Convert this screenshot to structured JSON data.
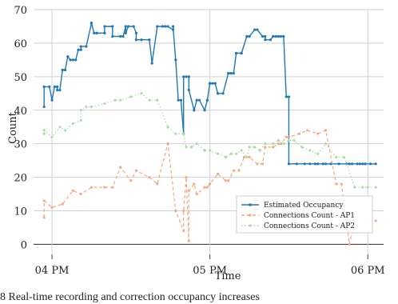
{
  "chart_data": {
    "type": "line",
    "title": "",
    "xlabel": "Time",
    "ylabel": "Count",
    "x_ticks": [
      "04 PM",
      "05 PM",
      "06 PM"
    ],
    "x_tick_values_min": [
      0,
      60,
      120
    ],
    "y_ticks": [
      0,
      10,
      20,
      30,
      40,
      50,
      60,
      70
    ],
    "xlim_min": [
      -7,
      126
    ],
    "ylim": [
      -3,
      70
    ],
    "grid": true,
    "legend_position": "bottom-right",
    "series": [
      {
        "name": "Estimated Occupancy",
        "color": "#1f77b4",
        "style": "solid",
        "marker": "circle",
        "x": [
          -3,
          -3,
          -1,
          0,
          1,
          2,
          2,
          3,
          4,
          4,
          5,
          6,
          7,
          8,
          9,
          10,
          10,
          11,
          11,
          13,
          15,
          15,
          16,
          17,
          17,
          20,
          20,
          23,
          23,
          26,
          27,
          28,
          28,
          29,
          31,
          32,
          32,
          34,
          37,
          38,
          40,
          42,
          43,
          44,
          46,
          46,
          47,
          48,
          49,
          50,
          50,
          51,
          52,
          52,
          54,
          55,
          56,
          58,
          59,
          59,
          60,
          60,
          61,
          62,
          63,
          63,
          65,
          67,
          67,
          68,
          69,
          70,
          72,
          72,
          74,
          75,
          75,
          77,
          78,
          80,
          81,
          81,
          83,
          84,
          85,
          86,
          87,
          88,
          89,
          90,
          90,
          93,
          96,
          98,
          100,
          101,
          103,
          104,
          106,
          109,
          112,
          113,
          114,
          116,
          117,
          118,
          119,
          119,
          121,
          123
        ],
        "y": [
          41,
          47,
          47,
          43,
          47,
          47,
          46,
          46,
          52,
          52,
          52,
          56,
          55,
          55,
          55,
          58,
          58,
          58,
          59,
          59,
          66,
          66,
          63,
          63,
          63,
          63,
          65,
          65,
          62,
          62,
          62,
          65,
          63,
          65,
          65,
          63,
          61,
          61,
          61,
          54,
          65,
          65,
          65,
          65,
          64,
          65,
          55,
          43,
          43,
          33,
          50,
          50,
          50,
          46,
          40,
          43,
          43,
          40,
          43,
          43,
          48,
          48,
          48,
          48,
          45,
          45,
          45,
          51,
          51,
          51,
          51,
          57,
          57,
          57,
          62,
          62,
          62,
          64,
          64,
          62,
          62,
          61,
          61,
          62,
          62,
          62,
          62,
          62,
          44,
          44,
          24,
          24,
          24,
          24,
          24,
          24,
          24,
          24,
          24,
          24,
          24,
          24,
          24,
          24,
          24,
          24,
          24,
          24,
          24,
          24
        ]
      },
      {
        "name": "Connections Count - AP1",
        "color": "#f4a582",
        "style": "dashed",
        "marker": "square",
        "x": [
          -3,
          -3,
          0,
          4,
          8,
          11,
          15,
          20,
          23,
          26,
          30,
          32,
          37,
          40,
          44,
          47,
          50,
          50,
          51,
          52,
          52,
          54,
          55,
          58,
          59,
          60,
          63,
          66,
          67,
          69,
          71,
          73,
          75,
          78,
          80,
          81,
          84,
          86,
          87,
          89,
          90,
          94,
          97,
          101,
          104,
          108,
          110,
          113,
          115,
          117,
          119,
          120,
          121,
          123
        ],
        "y": [
          8,
          13,
          11,
          12,
          16,
          15,
          17,
          17,
          17,
          23,
          19,
          22,
          20,
          18,
          30,
          10,
          4,
          10,
          20,
          1,
          16,
          18,
          15,
          17,
          17,
          18,
          21,
          19,
          19,
          22,
          22,
          26,
          26,
          24,
          24,
          29,
          29,
          30,
          30,
          32,
          32,
          33,
          34,
          33,
          34,
          18,
          18,
          0,
          7,
          7,
          7,
          7,
          7,
          7
        ]
      },
      {
        "name": "Connections Count - AP2",
        "color": "#a6dba0",
        "style": "dotted",
        "marker": "diamond",
        "x": [
          -3,
          -3,
          0,
          3,
          5,
          8,
          11,
          11,
          13,
          15,
          20,
          24,
          26,
          30,
          34,
          37,
          40,
          44,
          47,
          50,
          51,
          53,
          55,
          58,
          60,
          63,
          66,
          68,
          70,
          72,
          74,
          75,
          77,
          79,
          81,
          84,
          86,
          88,
          90,
          92,
          95,
          98,
          101,
          104,
          108,
          111,
          115,
          118,
          120,
          123
        ],
        "y": [
          33,
          34,
          32,
          35,
          34,
          36,
          37,
          40,
          41,
          41,
          42,
          43,
          43,
          44,
          45,
          43,
          43,
          35,
          33,
          33,
          29,
          29,
          30,
          28,
          28,
          27,
          26,
          27,
          27,
          28,
          26,
          29,
          29,
          28,
          30,
          30,
          31,
          30,
          31,
          31,
          29,
          28,
          27,
          30,
          26,
          26,
          17,
          17,
          17,
          17
        ]
      }
    ]
  },
  "caption": "8    Real-time recording and correction occupancy increases"
}
